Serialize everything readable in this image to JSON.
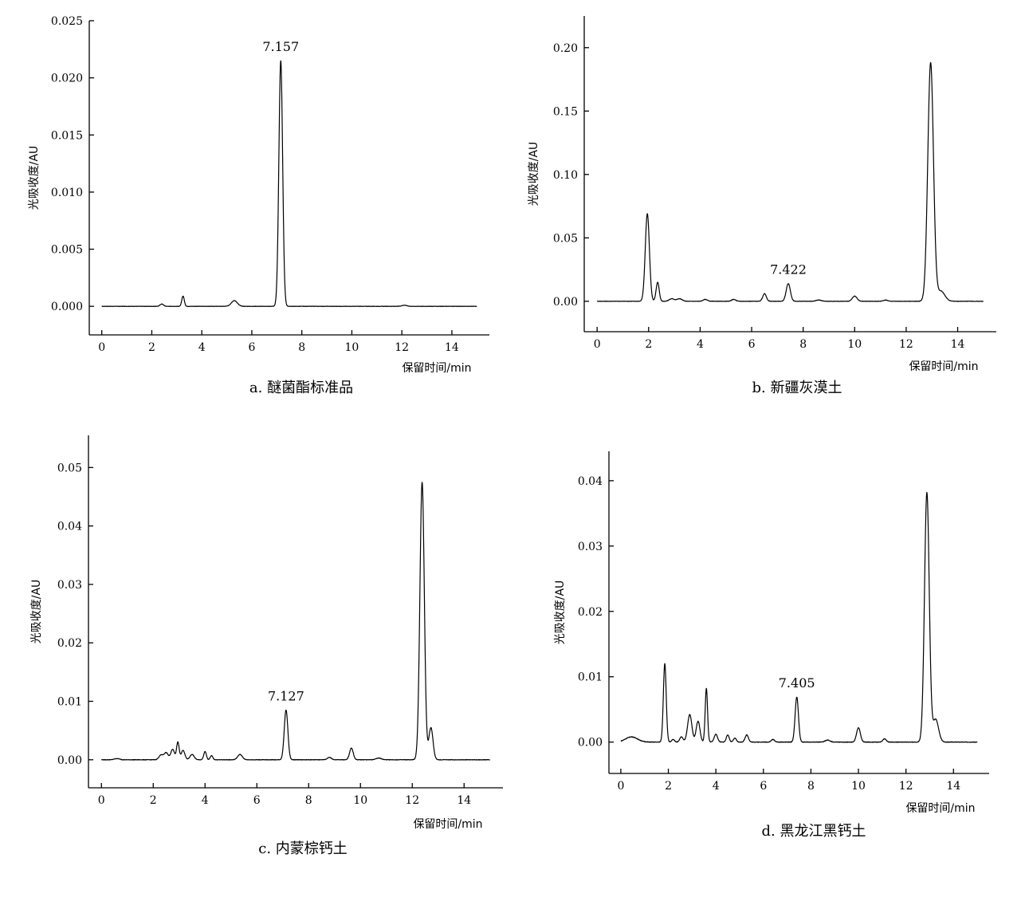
{
  "chart_data": [
    {
      "id": "a",
      "type": "line",
      "title": "a. 醚菌酯标准品",
      "xlabel": "保留时间/min",
      "ylabel": "光吸收度/AU",
      "xlim": [
        -0.5,
        15.5
      ],
      "ylim": [
        -0.0025,
        0.025
      ],
      "xticks": [
        0,
        2,
        4,
        6,
        8,
        10,
        12,
        14
      ],
      "yticks": [
        0.0,
        0.005,
        0.01,
        0.015,
        0.02,
        0.025
      ],
      "ytick_labels": [
        "0.000",
        "0.005",
        "0.010",
        "0.015",
        "0.020",
        "0.025"
      ],
      "x_range": [
        0,
        15
      ],
      "baseline": 0.0,
      "noise": 3e-05,
      "peaks": [
        {
          "x": 2.4,
          "h": 0.0002,
          "w": 0.07
        },
        {
          "x": 3.25,
          "h": 0.0009,
          "w": 0.05
        },
        {
          "x": 5.3,
          "h": 0.0005,
          "w": 0.12
        },
        {
          "x": 7.157,
          "h": 0.0215,
          "w": 0.075
        },
        {
          "x": 12.1,
          "h": 0.0001,
          "w": 0.1
        }
      ],
      "annotations": [
        {
          "text": "7.157",
          "x": 7.157,
          "y": 0.0215
        }
      ]
    },
    {
      "id": "b",
      "type": "line",
      "title": "b. 新疆灰漠土",
      "xlabel": "保留时间/min",
      "ylabel": "光吸收度/AU",
      "xlim": [
        -0.5,
        15.5
      ],
      "ylim": [
        -0.025,
        0.225
      ],
      "xticks": [
        0,
        2,
        4,
        6,
        8,
        10,
        12,
        14
      ],
      "yticks": [
        0.0,
        0.05,
        0.1,
        0.15,
        0.2
      ],
      "ytick_labels": [
        "0.00",
        "0.05",
        "0.10",
        "0.15",
        "0.20"
      ],
      "x_range": [
        0,
        15
      ],
      "baseline": 0.0,
      "noise": 0.0003,
      "peaks": [
        {
          "x": 1.95,
          "h": 0.069,
          "w": 0.08
        },
        {
          "x": 2.35,
          "h": 0.015,
          "w": 0.06
        },
        {
          "x": 2.9,
          "h": 0.002,
          "w": 0.1
        },
        {
          "x": 3.2,
          "h": 0.002,
          "w": 0.1
        },
        {
          "x": 4.2,
          "h": 0.0015,
          "w": 0.08
        },
        {
          "x": 5.3,
          "h": 0.0015,
          "w": 0.08
        },
        {
          "x": 6.5,
          "h": 0.006,
          "w": 0.07
        },
        {
          "x": 7.422,
          "h": 0.014,
          "w": 0.08
        },
        {
          "x": 8.6,
          "h": 0.001,
          "w": 0.1
        },
        {
          "x": 10.0,
          "h": 0.004,
          "w": 0.09
        },
        {
          "x": 11.2,
          "h": 0.001,
          "w": 0.08
        },
        {
          "x": 12.95,
          "h": 0.188,
          "w": 0.11
        },
        {
          "x": 13.35,
          "h": 0.008,
          "w": 0.15
        }
      ],
      "annotations": [
        {
          "text": "7.422",
          "x": 7.422,
          "y": 0.014
        }
      ]
    },
    {
      "id": "c",
      "type": "line",
      "title": "c. 内蒙棕钙土",
      "xlabel": "保留时间/min",
      "ylabel": "光吸收度/AU",
      "xlim": [
        -0.5,
        15.5
      ],
      "ylim": [
        -0.005,
        0.055
      ],
      "xticks": [
        0,
        2,
        4,
        6,
        8,
        10,
        12,
        14
      ],
      "yticks": [
        0.0,
        0.01,
        0.02,
        0.03,
        0.04,
        0.05
      ],
      "ytick_labels": [
        "0.00",
        "0.01",
        "0.02",
        "0.03",
        "0.04",
        "0.05"
      ],
      "x_range": [
        0,
        15
      ],
      "baseline": 0.0,
      "noise": 8e-05,
      "peaks": [
        {
          "x": 0.6,
          "h": 0.0002,
          "w": 0.1
        },
        {
          "x": 2.3,
          "h": 0.0008,
          "w": 0.08
        },
        {
          "x": 2.5,
          "h": 0.0012,
          "w": 0.08
        },
        {
          "x": 2.75,
          "h": 0.0018,
          "w": 0.07
        },
        {
          "x": 2.95,
          "h": 0.003,
          "w": 0.05
        },
        {
          "x": 3.15,
          "h": 0.0016,
          "w": 0.07
        },
        {
          "x": 3.5,
          "h": 0.0009,
          "w": 0.08
        },
        {
          "x": 4.0,
          "h": 0.0014,
          "w": 0.05
        },
        {
          "x": 4.25,
          "h": 0.0007,
          "w": 0.05
        },
        {
          "x": 5.35,
          "h": 0.0009,
          "w": 0.09
        },
        {
          "x": 7.127,
          "h": 0.0085,
          "w": 0.07
        },
        {
          "x": 8.8,
          "h": 0.0004,
          "w": 0.08
        },
        {
          "x": 9.65,
          "h": 0.002,
          "w": 0.07
        },
        {
          "x": 10.7,
          "h": 0.0003,
          "w": 0.1
        },
        {
          "x": 12.38,
          "h": 0.0475,
          "w": 0.085
        },
        {
          "x": 12.72,
          "h": 0.0055,
          "w": 0.08
        }
      ],
      "annotations": [
        {
          "text": "7.127",
          "x": 7.127,
          "y": 0.0085
        }
      ]
    },
    {
      "id": "d",
      "type": "line",
      "title": "d. 黑龙江黑钙土",
      "xlabel": "保留时间/min",
      "ylabel": "光吸收度/AU",
      "xlim": [
        -0.5,
        15.5
      ],
      "ylim": [
        -0.0048,
        0.0045
      ],
      "xticks": [
        0,
        2,
        4,
        6,
        8,
        10,
        12,
        14
      ],
      "yticks": [
        0.0,
        0.01,
        0.02,
        0.03,
        0.04
      ],
      "ytick_labels": [
        "0.00",
        "0.01",
        "0.02",
        "0.03",
        "0.04"
      ],
      "x_range": [
        0,
        15
      ],
      "baseline": 0.0,
      "noise": 8e-05,
      "peaks": [
        {
          "x": 0.45,
          "h": 0.0008,
          "w": 0.25
        },
        {
          "x": 1.85,
          "h": 0.012,
          "w": 0.06
        },
        {
          "x": 2.2,
          "h": 0.0004,
          "w": 0.06
        },
        {
          "x": 2.55,
          "h": 0.0008,
          "w": 0.07
        },
        {
          "x": 2.9,
          "h": 0.0042,
          "w": 0.09
        },
        {
          "x": 3.25,
          "h": 0.0032,
          "w": 0.08
        },
        {
          "x": 3.6,
          "h": 0.0082,
          "w": 0.05
        },
        {
          "x": 4.0,
          "h": 0.0012,
          "w": 0.07
        },
        {
          "x": 4.5,
          "h": 0.0011,
          "w": 0.06
        },
        {
          "x": 4.8,
          "h": 0.0006,
          "w": 0.06
        },
        {
          "x": 5.3,
          "h": 0.0011,
          "w": 0.07
        },
        {
          "x": 6.4,
          "h": 0.0004,
          "w": 0.07
        },
        {
          "x": 7.405,
          "h": 0.0069,
          "w": 0.07
        },
        {
          "x": 8.7,
          "h": 0.0003,
          "w": 0.1
        },
        {
          "x": 10.0,
          "h": 0.0022,
          "w": 0.08
        },
        {
          "x": 11.1,
          "h": 0.0005,
          "w": 0.07
        },
        {
          "x": 12.88,
          "h": 0.0382,
          "w": 0.1
        },
        {
          "x": 13.25,
          "h": 0.0035,
          "w": 0.12
        }
      ],
      "annotations": [
        {
          "text": "7.405",
          "x": 7.405,
          "y": 0.0069
        }
      ]
    }
  ]
}
